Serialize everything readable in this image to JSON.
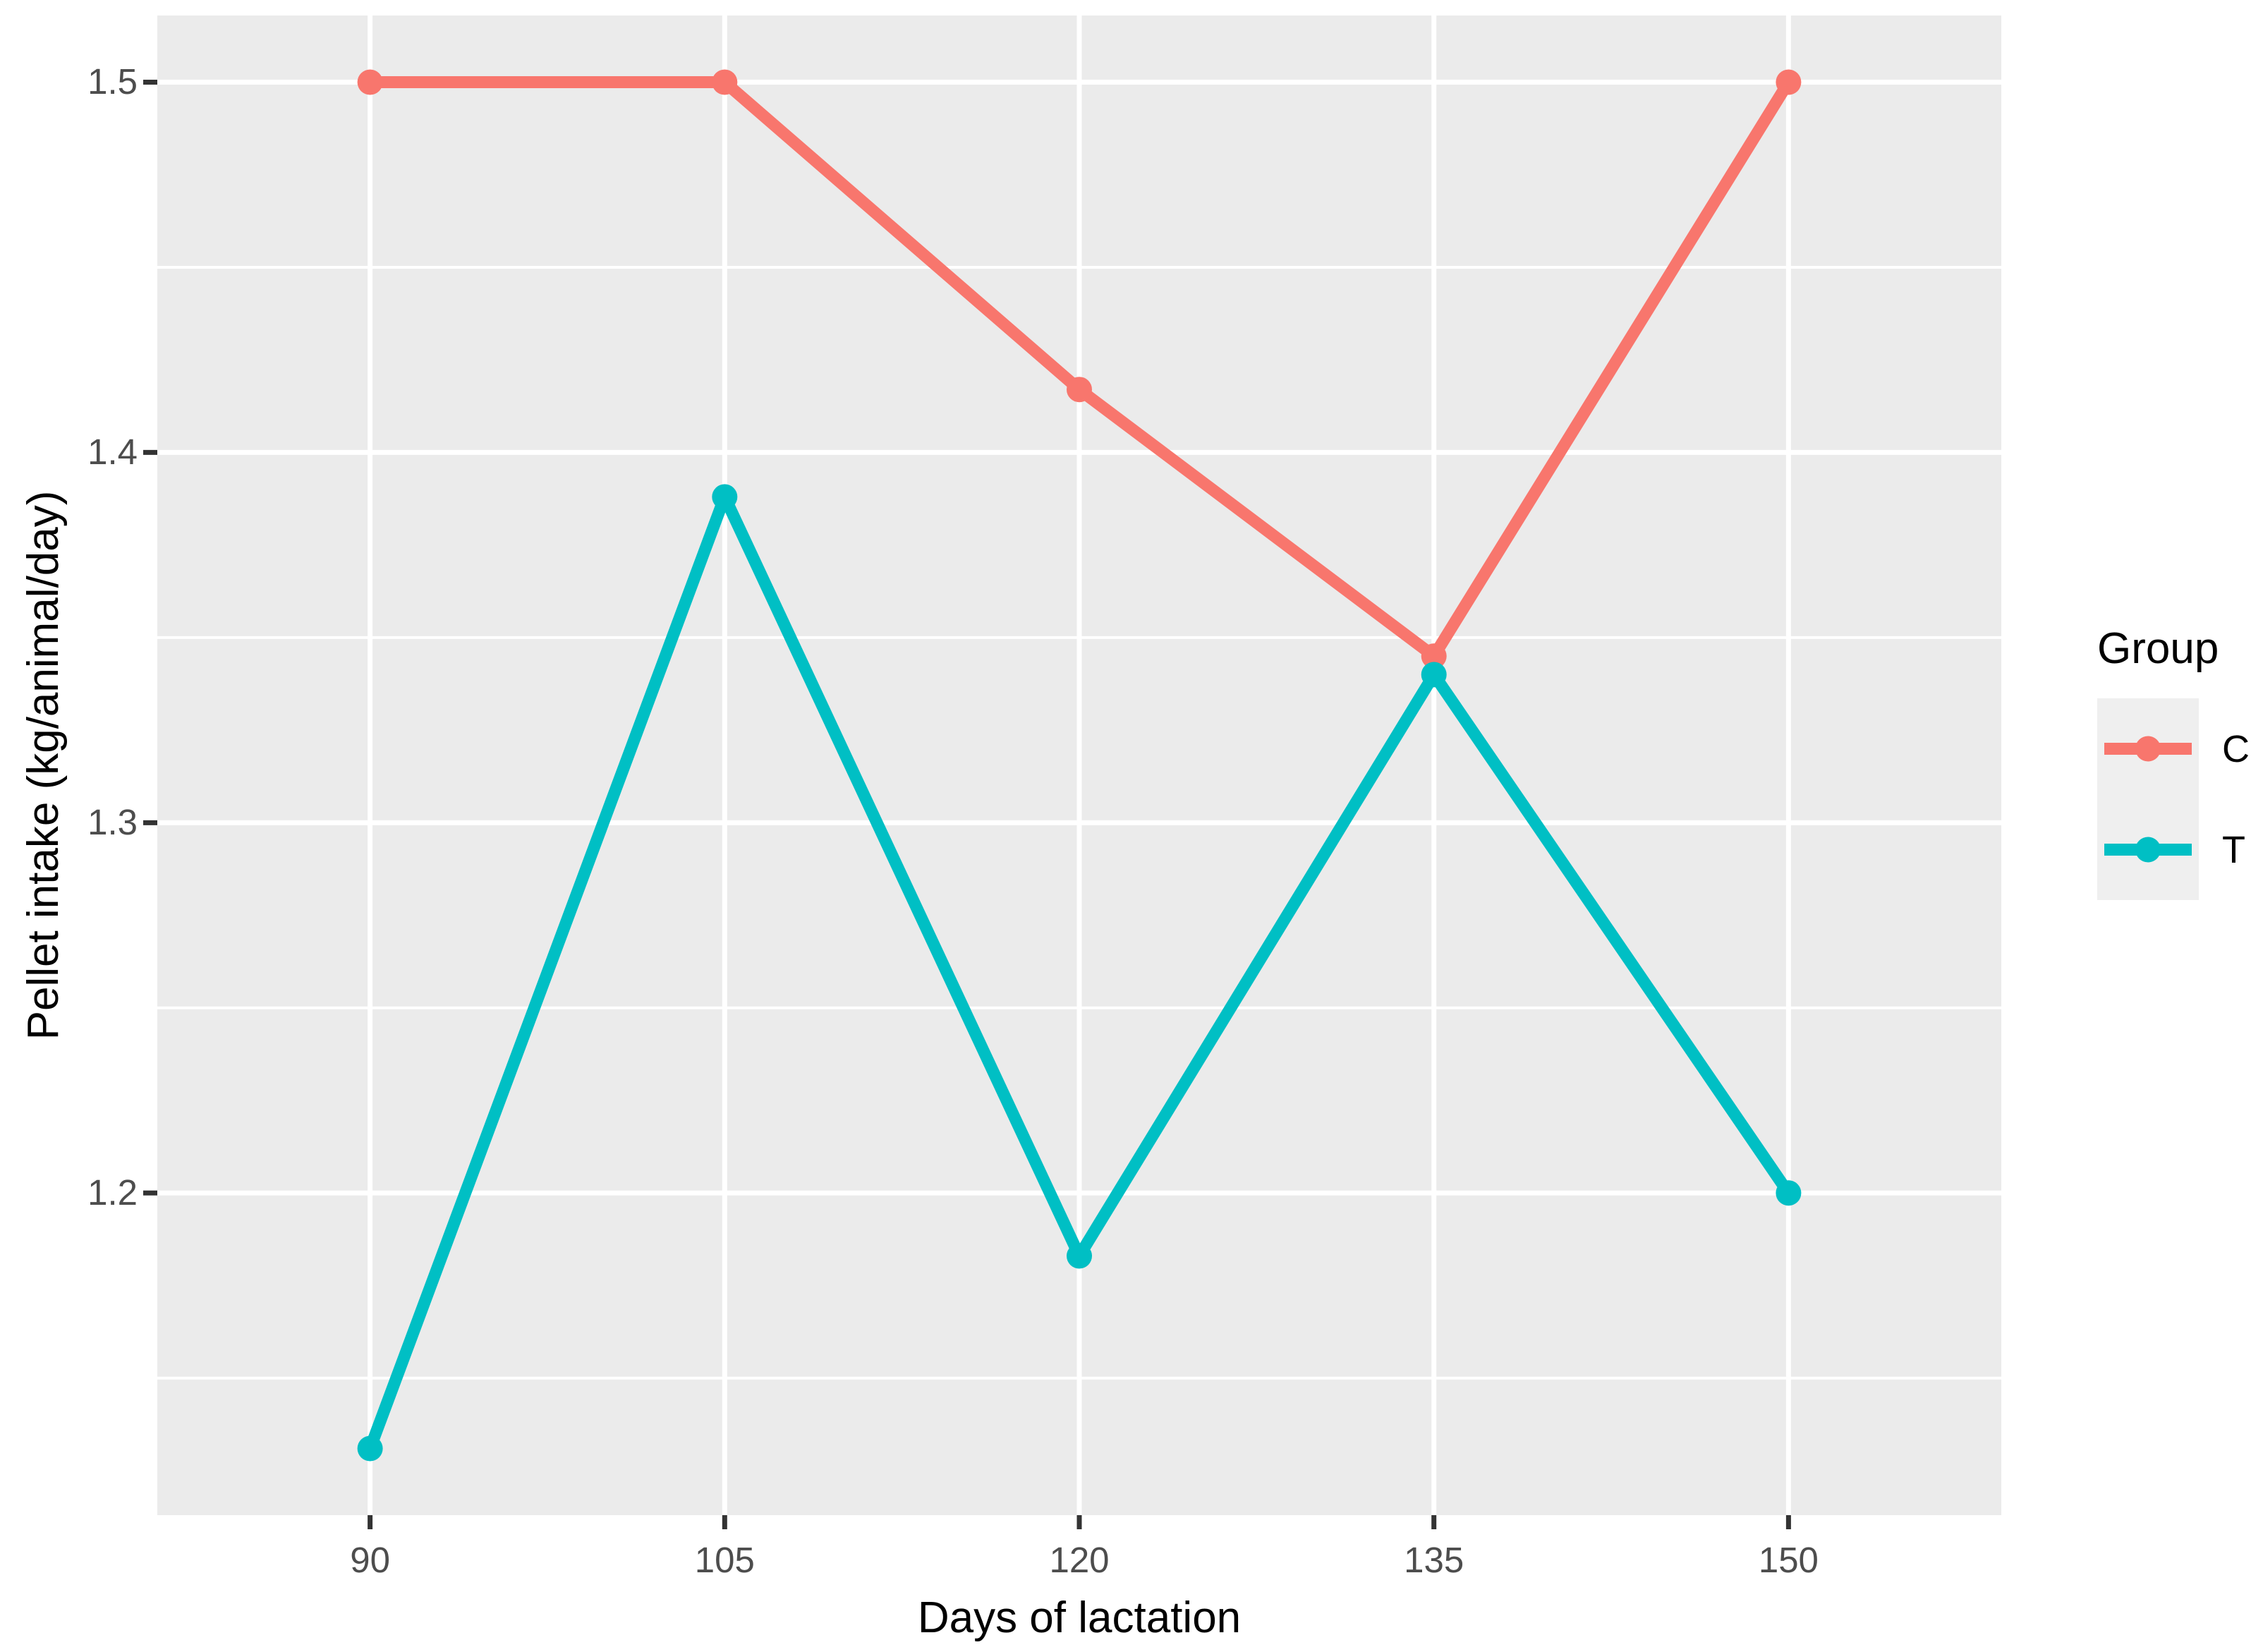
{
  "figure": {
    "background": "#FFFFFF"
  },
  "chart_data": {
    "type": "line",
    "title": "",
    "xlabel": "Days of lactation",
    "ylabel": "Pellet intake (kg/animal/day)",
    "x": [
      90,
      105,
      120,
      135,
      150
    ],
    "series": [
      {
        "name": "C",
        "color": "#F8766D",
        "values": [
          1.5,
          1.5,
          1.417,
          1.345,
          1.5
        ]
      },
      {
        "name": "T",
        "color": "#00BFC4",
        "values": [
          1.131,
          1.388,
          1.183,
          1.34,
          1.2
        ]
      }
    ],
    "xlim": [
      81,
      159
    ],
    "ylim": [
      1.113,
      1.518
    ],
    "x_ticks": {
      "values": [
        90,
        105,
        120,
        135,
        150
      ],
      "labels": [
        "90",
        "105",
        "120",
        "135",
        "150"
      ]
    },
    "y_ticks": {
      "values": [
        1.2,
        1.3,
        1.4,
        1.5
      ],
      "labels": [
        "1.2",
        "1.3",
        "1.4",
        "1.5"
      ]
    },
    "y_minor_breaks": [
      1.15,
      1.25,
      1.35,
      1.45
    ],
    "grid": "major x+y, minor y only, white on grey panel",
    "legend": {
      "title": "Group",
      "position": "right",
      "entries": [
        "C",
        "T"
      ]
    },
    "style": {
      "panel_background": "#EBEBEB",
      "grid_color": "#FFFFFF",
      "tick_mark_color": "#333333",
      "tick_label_color": "#4D4D4D",
      "axis_title_color": "#000000",
      "legend_key_background": "#EFEFEF"
    }
  }
}
